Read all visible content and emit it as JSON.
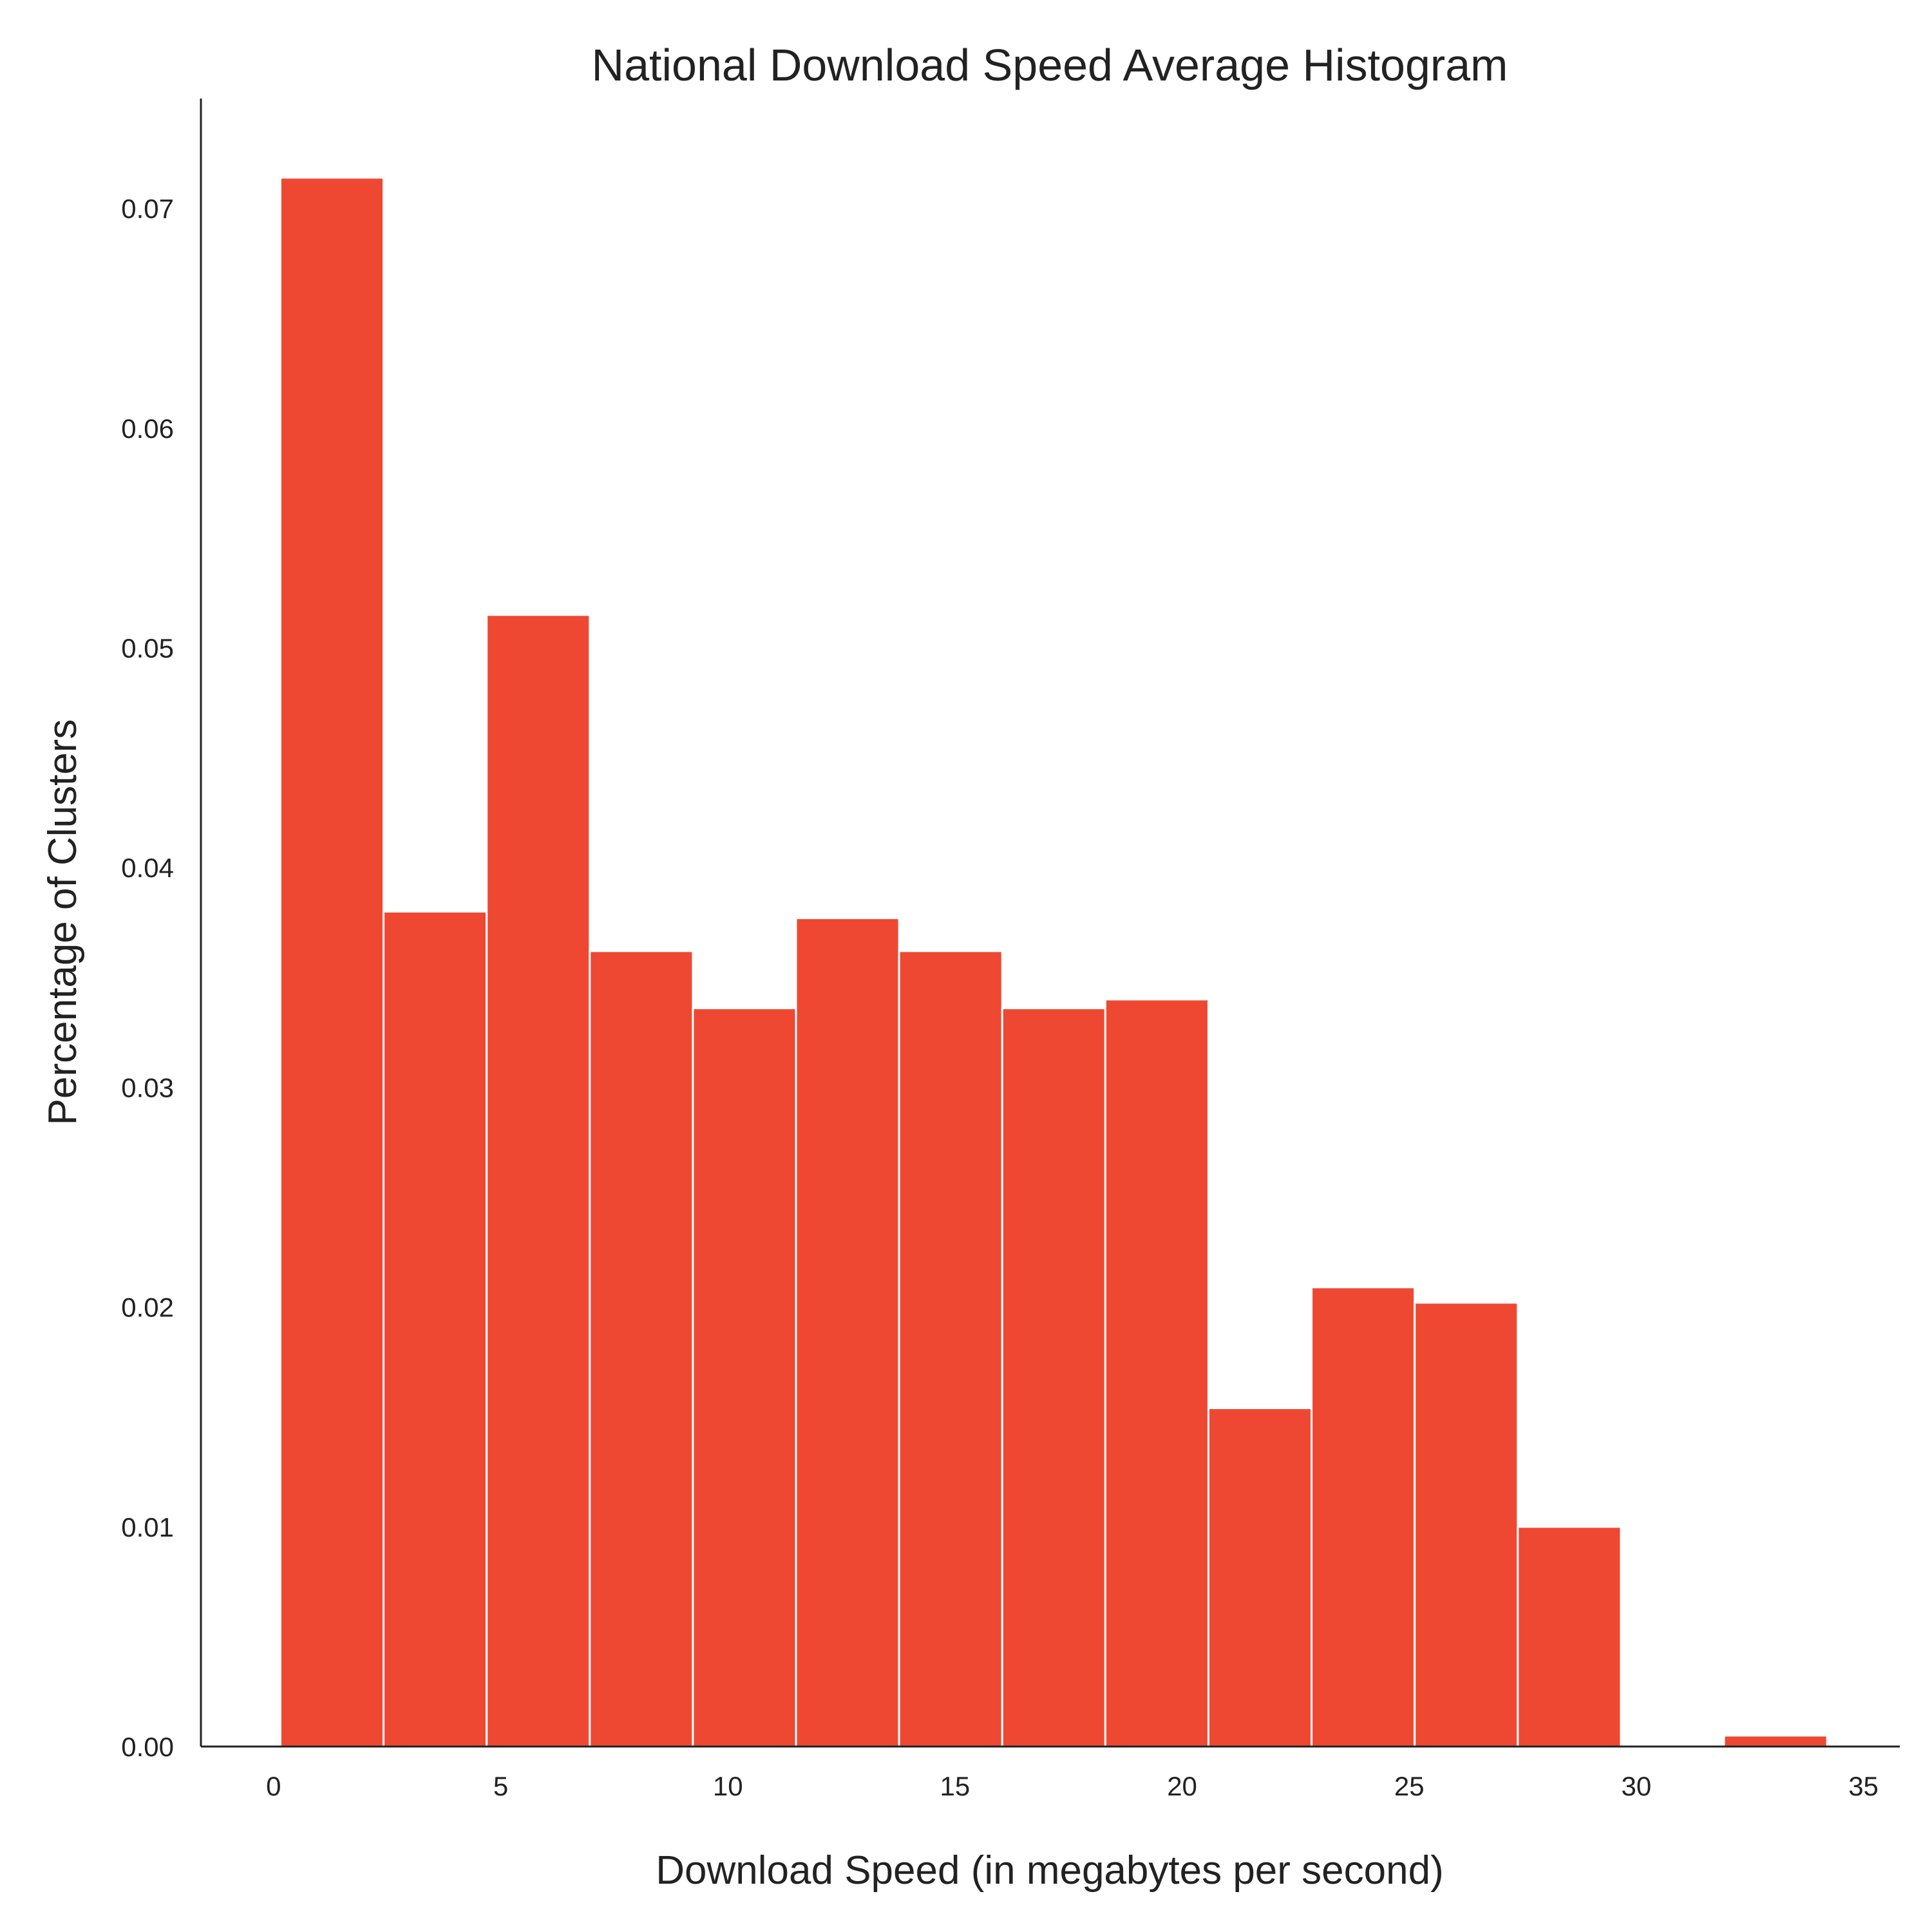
{
  "chart_data": {
    "type": "bar",
    "title": "National Download Speed Average Histogram",
    "xlabel": "Download Speed (in megabytes per second)",
    "ylabel": "Percentage of Clusters",
    "xlim": [
      -1.6,
      35.8
    ],
    "ylim": [
      0,
      0.075
    ],
    "xticks": [
      0,
      5,
      10,
      15,
      20,
      25,
      30,
      35
    ],
    "xtick_labels": [
      "0",
      "5",
      "10",
      "15",
      "20",
      "25",
      "30",
      "35"
    ],
    "yticks": [
      0.0,
      0.01,
      0.02,
      0.03,
      0.04,
      0.05,
      0.06,
      0.07
    ],
    "ytick_labels": [
      "0.00",
      "0.01",
      "0.02",
      "0.03",
      "0.04",
      "0.05",
      "0.06",
      "0.07"
    ],
    "bins": [
      {
        "start": 0.15,
        "end": 2.42,
        "value": 0.0714
      },
      {
        "start": 2.42,
        "end": 4.69,
        "value": 0.038
      },
      {
        "start": 4.69,
        "end": 6.96,
        "value": 0.0515
      },
      {
        "start": 6.96,
        "end": 9.23,
        "value": 0.0362
      },
      {
        "start": 9.23,
        "end": 11.5,
        "value": 0.0336
      },
      {
        "start": 11.5,
        "end": 13.77,
        "value": 0.0377
      },
      {
        "start": 13.77,
        "end": 16.04,
        "value": 0.0362
      },
      {
        "start": 16.04,
        "end": 18.31,
        "value": 0.0336
      },
      {
        "start": 18.31,
        "end": 20.58,
        "value": 0.034
      },
      {
        "start": 20.58,
        "end": 22.85,
        "value": 0.0154
      },
      {
        "start": 22.85,
        "end": 25.12,
        "value": 0.0209
      },
      {
        "start": 25.12,
        "end": 27.39,
        "value": 0.0202
      },
      {
        "start": 27.39,
        "end": 29.66,
        "value": 0.01
      },
      {
        "start": 29.66,
        "end": 31.93,
        "value": 0.0
      },
      {
        "start": 31.93,
        "end": 34.2,
        "value": 0.0005
      }
    ],
    "bar_color": "#ee4833",
    "bar_edge_color": "#ffffff",
    "grid": false,
    "spines": [
      "left",
      "bottom"
    ]
  }
}
